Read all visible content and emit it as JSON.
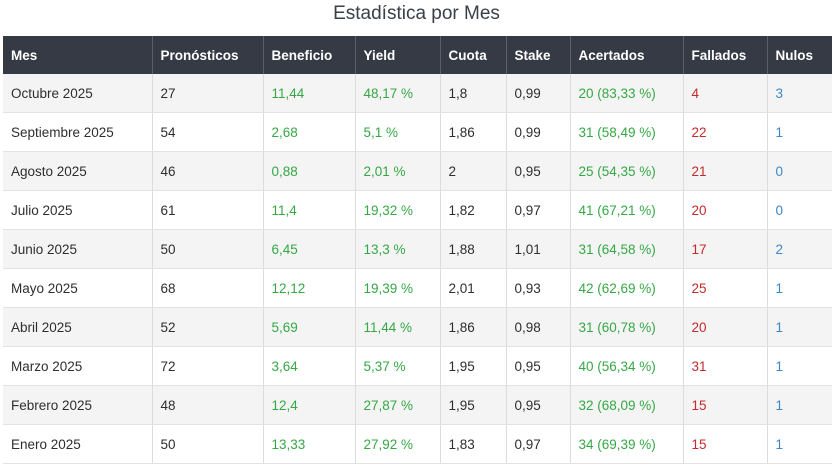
{
  "title": "Estadística por Mes",
  "colors": {
    "header_bg": "#353a45",
    "positive": "#35a845",
    "negative": "#c52a2a",
    "neutral": "#3d87c5"
  },
  "table": {
    "headers": [
      "Mes",
      "Pronósticos",
      "Beneficio",
      "Yield",
      "Cuota",
      "Stake",
      "Acertados",
      "Fallados",
      "Nulos"
    ],
    "rows": [
      {
        "mes": "Octubre 2025",
        "pronosticos": "27",
        "beneficio": "11,44",
        "yield": "48,17 %",
        "cuota": "1,8",
        "stake": "0,99",
        "acertados": "20 (83,33 %)",
        "fallados": "4",
        "nulos": "3"
      },
      {
        "mes": "Septiembre 2025",
        "pronosticos": "54",
        "beneficio": "2,68",
        "yield": "5,1 %",
        "cuota": "1,86",
        "stake": "0,99",
        "acertados": "31 (58,49 %)",
        "fallados": "22",
        "nulos": "1"
      },
      {
        "mes": "Agosto 2025",
        "pronosticos": "46",
        "beneficio": "0,88",
        "yield": "2,01 %",
        "cuota": "2",
        "stake": "0,95",
        "acertados": "25 (54,35 %)",
        "fallados": "21",
        "nulos": "0"
      },
      {
        "mes": "Julio 2025",
        "pronosticos": "61",
        "beneficio": "11,4",
        "yield": "19,32 %",
        "cuota": "1,82",
        "stake": "0,97",
        "acertados": "41 (67,21 %)",
        "fallados": "20",
        "nulos": "0"
      },
      {
        "mes": "Junio 2025",
        "pronosticos": "50",
        "beneficio": "6,45",
        "yield": "13,3 %",
        "cuota": "1,88",
        "stake": "1,01",
        "acertados": "31 (64,58 %)",
        "fallados": "17",
        "nulos": "2"
      },
      {
        "mes": "Mayo 2025",
        "pronosticos": "68",
        "beneficio": "12,12",
        "yield": "19,39 %",
        "cuota": "2,01",
        "stake": "0,93",
        "acertados": "42 (62,69 %)",
        "fallados": "25",
        "nulos": "1"
      },
      {
        "mes": "Abril 2025",
        "pronosticos": "52",
        "beneficio": "5,69",
        "yield": "11,44 %",
        "cuota": "1,86",
        "stake": "0,98",
        "acertados": "31 (60,78 %)",
        "fallados": "20",
        "nulos": "1"
      },
      {
        "mes": "Marzo 2025",
        "pronosticos": "72",
        "beneficio": "3,64",
        "yield": "5,37 %",
        "cuota": "1,95",
        "stake": "0,95",
        "acertados": "40 (56,34 %)",
        "fallados": "31",
        "nulos": "1"
      },
      {
        "mes": "Febrero 2025",
        "pronosticos": "48",
        "beneficio": "12,4",
        "yield": "27,87 %",
        "cuota": "1,95",
        "stake": "0,95",
        "acertados": "32 (68,09 %)",
        "fallados": "15",
        "nulos": "1"
      },
      {
        "mes": "Enero 2025",
        "pronosticos": "50",
        "beneficio": "13,33",
        "yield": "27,92 %",
        "cuota": "1,83",
        "stake": "0,97",
        "acertados": "34 (69,39 %)",
        "fallados": "15",
        "nulos": "1"
      }
    ]
  }
}
